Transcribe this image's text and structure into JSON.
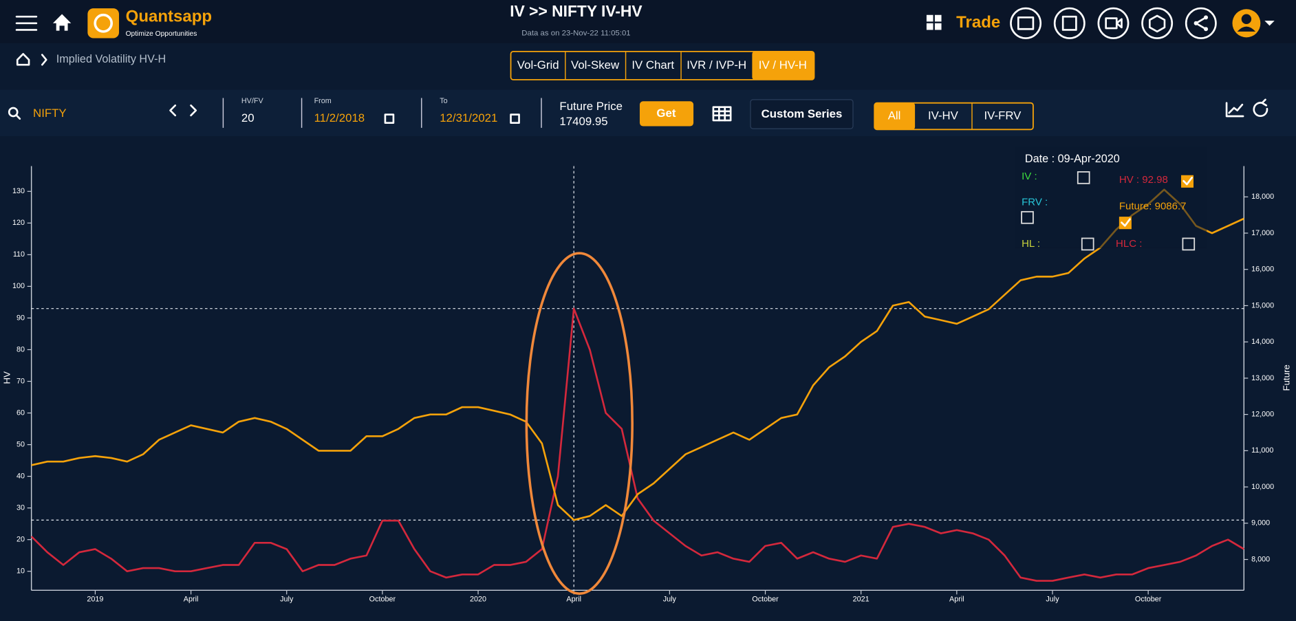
{
  "header": {
    "logo": "Quantsapp",
    "tagline": "Optimize Opportunities",
    "title": "IV >> NIFTY IV-HV",
    "subtitle": "Data as on 23-Nov-22 11:05:01",
    "trade": "Trade"
  },
  "breadcrumb": "Implied Volatility HV-H",
  "tabs": [
    "Vol-Grid",
    "Vol-Skew",
    "IV Chart",
    "IVR / IVP-H",
    "IV / HV-H"
  ],
  "toolbar": {
    "symbol": "NIFTY",
    "hv_label": "HV/FV",
    "hv_value": 20,
    "from_label": "From",
    "from": "11/2/2018",
    "to_label": "To",
    "to": "12/31/2021",
    "future_label": "Future Price",
    "future_value": 17409.95,
    "get": "Get",
    "custom": "Custom Series",
    "filters": [
      "All",
      "IV-HV",
      "IV-FRV"
    ]
  },
  "chart_data": {
    "type": "line",
    "categories": [
      null,
      null,
      null,
      null,
      "2019",
      null,
      null,
      null,
      null,
      null,
      "April",
      null,
      null,
      null,
      null,
      null,
      "July",
      null,
      null,
      null,
      null,
      null,
      "October",
      null,
      null,
      null,
      null,
      null,
      "2020",
      null,
      null,
      null,
      null,
      null,
      "April",
      null,
      null,
      null,
      null,
      null,
      "July",
      null,
      null,
      null,
      null,
      null,
      "October",
      null,
      null,
      null,
      null,
      null,
      "2021",
      null,
      null,
      null,
      null,
      null,
      "April",
      null,
      null,
      null,
      null,
      null,
      "July",
      null,
      null,
      null,
      null,
      null,
      "October",
      null,
      null,
      null,
      null,
      null,
      null
    ],
    "series": [
      {
        "name": "HV",
        "color": "#d4283c",
        "values": [
          21,
          16,
          12,
          16,
          17,
          14,
          10,
          11,
          11,
          10,
          10,
          11,
          12,
          12,
          19,
          19,
          17,
          10,
          12,
          12,
          14,
          15,
          26,
          26,
          17,
          10,
          8,
          9,
          9,
          12,
          12,
          13,
          17,
          40,
          92.98,
          80,
          60,
          55,
          33,
          26,
          22,
          18,
          15,
          16,
          14,
          13,
          18,
          19,
          14,
          16,
          14,
          13,
          15,
          14,
          24,
          25,
          24,
          22,
          23,
          22,
          20,
          15,
          8,
          7,
          7,
          8,
          9,
          8,
          9,
          9,
          11,
          12,
          13,
          15,
          18,
          20,
          17
        ]
      },
      {
        "name": "Future",
        "color": "#f5a20a",
        "axis": "y2",
        "values": [
          10600,
          10700,
          10700,
          10800,
          10850,
          10800,
          10700,
          10900,
          11300,
          11500,
          11700,
          11600,
          11500,
          11800,
          11900,
          11800,
          11600,
          11300,
          11000,
          11000,
          11000,
          11400,
          11400,
          11600,
          11900,
          12000,
          12000,
          12200,
          12200,
          12100,
          12000,
          11800,
          11200,
          9500,
          9086.7,
          9200,
          9500,
          9200,
          9800,
          10100,
          10500,
          10900,
          11100,
          11300,
          11500,
          11300,
          11600,
          11900,
          12000,
          12800,
          13300,
          13600,
          14000,
          14300,
          15000,
          15100,
          14700,
          14600,
          14500,
          14700,
          14900,
          15300,
          15700,
          15800,
          15800,
          15900,
          16300,
          16600,
          17100,
          17500,
          17800,
          18200,
          17800,
          17200,
          17000,
          17200,
          17400
        ]
      }
    ],
    "ylim": [
      4,
      138
    ],
    "yticks": [
      10,
      20,
      30,
      40,
      50,
      60,
      70,
      80,
      90,
      100,
      110,
      120,
      130
    ],
    "y2lim": [
      7150,
      18850
    ],
    "y2ticks": [
      {
        "value": 8000,
        "label": "8,000"
      },
      {
        "value": 9000,
        "label": "9,000"
      },
      {
        "value": 10000,
        "label": "10,000"
      },
      {
        "value": 11000,
        "label": "11,000"
      },
      {
        "value": 12000,
        "label": "12,000"
      },
      {
        "value": 13000,
        "label": "13,000"
      },
      {
        "value": 14000,
        "label": "14,000"
      },
      {
        "value": 15000,
        "label": "15,000"
      },
      {
        "value": 16000,
        "label": "16,000"
      },
      {
        "value": 17000,
        "label": "17,000"
      },
      {
        "value": 18000,
        "label": "18,000"
      }
    ],
    "grid": false,
    "tooltip": {
      "date": "Date : 09-Apr-2020",
      "iv": "IV :",
      "hv": "HV : 92.98",
      "frv": "FRV :",
      "future": "Future: 9086.7",
      "hl": "HL :",
      "hlc": "HLC :"
    }
  }
}
